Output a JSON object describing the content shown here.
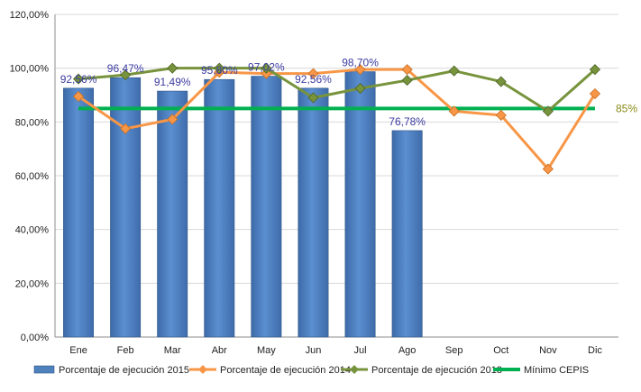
{
  "chart_data": {
    "type": "bar",
    "categories": [
      "Ene",
      "Feb",
      "Mar",
      "Abr",
      "May",
      "Jun",
      "Jul",
      "Ago",
      "Sep",
      "Oct",
      "Nov",
      "Dic"
    ],
    "yticks": [
      "0,00%",
      "20,00%",
      "40,00%",
      "60,00%",
      "80,00%",
      "100,00%",
      "120,00%"
    ],
    "ylim": [
      0,
      120
    ],
    "grid": true,
    "legend_position": "bottom",
    "series": [
      {
        "name": "Porcentaje de ejecución 2015",
        "type": "bar",
        "color": "#4f81bd",
        "values": [
          92.56,
          96.47,
          91.49,
          95.8,
          97.02,
          92.56,
          98.7,
          76.78,
          null,
          null,
          null,
          null
        ],
        "labels": [
          "92,56%",
          "96,47%",
          "91,49%",
          "95,80%",
          "97,02%",
          "92,56%",
          "98,70%",
          "76,78%",
          "",
          "",
          "",
          ""
        ]
      },
      {
        "name": "Porcentaje de ejecución 2014",
        "type": "line",
        "color": "#f79646",
        "values": [
          89.5,
          77.5,
          81.0,
          98.5,
          98.0,
          98.0,
          99.5,
          99.5,
          84.0,
          82.5,
          62.5,
          90.5
        ]
      },
      {
        "name": "Porcentaje de ejecución 2013",
        "type": "line",
        "color": "#77933c",
        "values": [
          96.0,
          97.5,
          100.0,
          100.0,
          100.0,
          89.0,
          92.5,
          95.5,
          99.0,
          95.0,
          84.0,
          99.5
        ]
      },
      {
        "name": "Mínimo CEPIS",
        "type": "reference",
        "color": "#00b050",
        "value": 85,
        "label": "85%"
      }
    ]
  }
}
